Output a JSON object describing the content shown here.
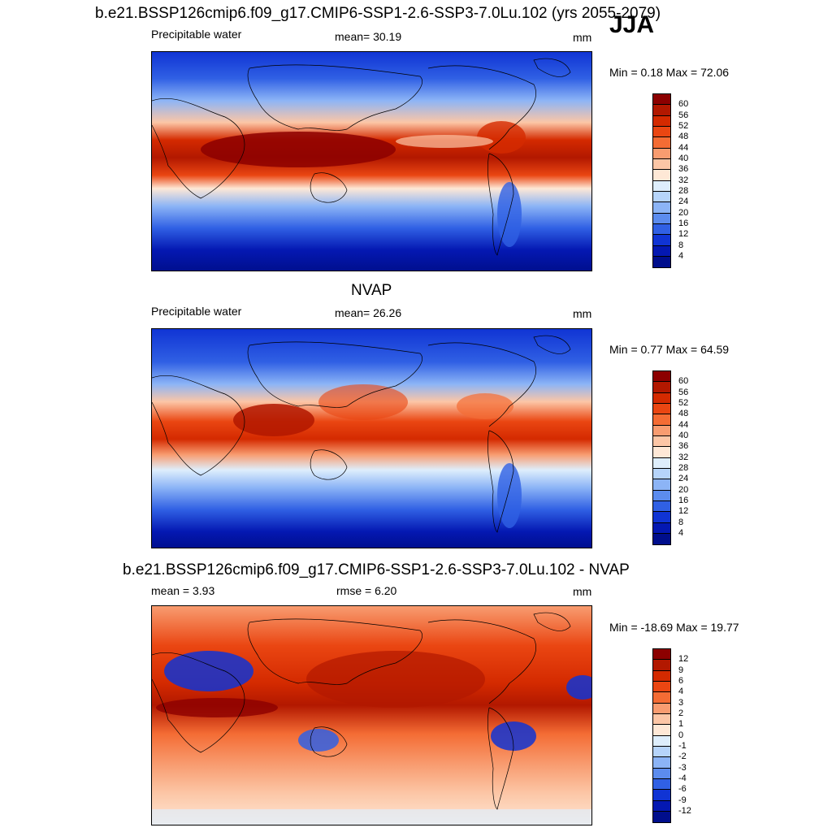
{
  "header": {
    "title": "b.e21.BSSP126cmip6.f09_g17.CMIP6-SSP1-2.6-SSP3-7.0Lu.102 (yrs 2055-2079)",
    "season": "JJA"
  },
  "panels": [
    {
      "id": "model",
      "variable": "Precipitable water",
      "stat_label": "mean=",
      "stat_value": "30.19",
      "units": "mm",
      "minmax_label": "Min =",
      "min": "0.18",
      "max_label": "Max =",
      "max": "72.06"
    },
    {
      "id": "obs",
      "heading": "NVAP",
      "variable": "Precipitable water",
      "stat_label": "mean=",
      "stat_value": "26.26",
      "units": "mm",
      "minmax_label": "Min =",
      "min": "0.77",
      "max_label": "Max =",
      "max": "64.59"
    },
    {
      "id": "diff",
      "heading": "b.e21.BSSP126cmip6.f09_g17.CMIP6-SSP1-2.6-SSP3-7.0Lu.102 - NVAP",
      "mean_label": "mean =",
      "mean_value": "3.93",
      "rmse_label": "rmse =",
      "rmse_value": "6.20",
      "units": "mm",
      "minmax_label": "Min =",
      "min": "-18.69",
      "max_label": "Max =",
      "max": "19.77"
    }
  ],
  "colorbars": {
    "abs": {
      "ticks": [
        "60",
        "56",
        "52",
        "48",
        "44",
        "40",
        "36",
        "32",
        "28",
        "24",
        "20",
        "16",
        "12",
        "8",
        "4"
      ],
      "colors": [
        "#8c0000",
        "#b21800",
        "#d42a00",
        "#ea4612",
        "#f46c34",
        "#f89c70",
        "#fcc6a6",
        "#fee8d6",
        "#deeefc",
        "#b6d4fa",
        "#8cb4f6",
        "#5c8cee",
        "#3060e4",
        "#1034d4",
        "#0418b2",
        "#000e8c"
      ]
    },
    "diff": {
      "ticks": [
        "12",
        "9",
        "6",
        "4",
        "3",
        "2",
        "1",
        "0",
        "-1",
        "-2",
        "-3",
        "-4",
        "-6",
        "-9",
        "-12"
      ],
      "colors": [
        "#8c0000",
        "#b21800",
        "#d42a00",
        "#ea4612",
        "#f46c34",
        "#f89c70",
        "#fcc6a6",
        "#fee8d6",
        "#deeefc",
        "#b6d4fa",
        "#8cb4f6",
        "#5c8cee",
        "#3060e4",
        "#1034d4",
        "#0418b2",
        "#000e8c"
      ]
    }
  }
}
